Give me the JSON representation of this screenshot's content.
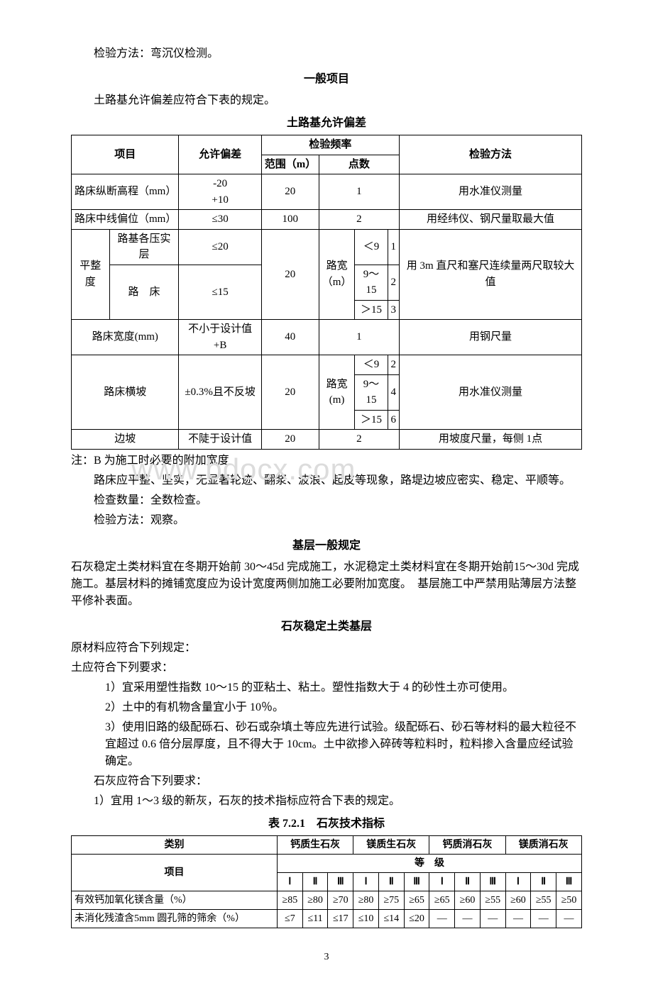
{
  "intro": {
    "method": "检验方法：弯沉仪检测。",
    "section1": "一般项目",
    "line1": "土路基允许偏差应符合下表的规定。",
    "table1_title": "土路基允许偏差"
  },
  "table1": {
    "header": {
      "c_item": "项目",
      "c_tolerance": "允许偏差",
      "c_freq": "检验频率",
      "c_range": "范围（m）",
      "c_points": "点数",
      "c_method": "检验方法"
    },
    "r1": {
      "item": "路床纵断高程（mm）",
      "tol": "-20\n+10",
      "range": "20",
      "points": "1",
      "method": "用水准仪测量"
    },
    "r2": {
      "item": "路床中线偏位（mm）",
      "tol": "≤30",
      "range": "100",
      "points": "2",
      "method": "用经纬仪、钢尺量取最大值"
    },
    "r3": {
      "item_l": "平整度",
      "sub1": "路基各压实层",
      "tol1": "≤20",
      "sub2": "路　床",
      "tol2": "≤15",
      "range": "20",
      "pre": "路宽\n（m）",
      "b1a": "＜9",
      "b1b": "1",
      "b2a": "9～15",
      "b2b": "2",
      "b3a": "＞15",
      "b3b": "3",
      "method": "用 3m 直尺和塞尺连续量两尺取较大值"
    },
    "r4": {
      "item": "路床宽度(mm)",
      "tol": "不小于设计值+B",
      "range": "40",
      "points": "1",
      "method": "用钢尺量"
    },
    "r5": {
      "item": "路床横坡",
      "tol": "±0.3%且不反坡",
      "range": "20",
      "pre": "路宽\n(m)",
      "b1a": "＜9",
      "b1b": "2",
      "b2a": "9～15",
      "b2b": "4",
      "b3a": "＞15",
      "b3b": "6",
      "method": "用水准仪测量"
    },
    "r6": {
      "item": "边坡",
      "tol": "不陡于设计值",
      "range": "20",
      "points": "2",
      "method": "用坡度尺量，每侧 1点"
    }
  },
  "after_t1": {
    "note": "注：B 为施工时必要的附加宽度",
    "p1": "路床应平整、坚实，无显著轮迹、翻浆、波浪、起皮等现象，路堤边坡应密实、稳定、平顺等。",
    "p2": "检查数量：全数检查。",
    "p3": "检验方法：观察。"
  },
  "base": {
    "title": "基层一般规定",
    "p1": "石灰稳定土类材料宜在冬期开始前 30～45d 完成施工，水泥稳定土类材料宜在冬期开始前15～30d 完成施工。基层材料的摊铺宽度应为设计宽度两侧加施工必要附加宽度。　基层施工中严禁用贴薄层方法整平修补表面。",
    "subtitle": "石灰稳定土类基层",
    "p2": "原材料应符合下列规定：",
    "p3": "土应符合下列要求：",
    "li1": "1）宜采用塑性指数 10～15 的亚粘土、粘土。塑性指数大于 4 的砂性土亦可使用。",
    "li2": "2）土中的有机物含量宜小于 10％。",
    "li3": "3）使用旧路的级配砾石、砂石或杂填土等应先进行试验。级配砾石、砂石等材料的最大粒径不宜超过 0.6 倍分层厚度，且不得大于 10cm。土中欲掺入碎砖等粒料时，粒料掺入含量应经试验确定。",
    "p4": "石灰应符合下列要求：",
    "p5": "1）宜用 1～3 级的新灰，石灰的技术指标应符合下表的规定。",
    "t2_title": "表 7.2.1　石灰技术指标"
  },
  "table2": {
    "h_cat": "类别",
    "h_item": "项目",
    "cats": {
      "a": "钙质生石灰",
      "b": "镁质生石灰",
      "c": "钙质消石灰",
      "d": "镁质消石灰"
    },
    "grade_label": "等　级",
    "grades": [
      "Ⅰ",
      "Ⅱ",
      "Ⅲ",
      "Ⅰ",
      "Ⅱ",
      "Ⅲ",
      "Ⅰ",
      "Ⅱ",
      "Ⅲ",
      "Ⅰ",
      "Ⅱ",
      "Ⅲ"
    ],
    "r1": {
      "item": "有效钙加氧化镁含量（%）",
      "v": [
        "≥85",
        "≥80",
        "≥70",
        "≥80",
        "≥75",
        "≥65",
        "≥65",
        "≥60",
        "≥55",
        "≥60",
        "≥55",
        "≥50"
      ]
    },
    "r2": {
      "item": "未消化残渣含5mm 圆孔筛的筛余（%）",
      "v": [
        "≤7",
        "≤11",
        "≤17",
        "≤10",
        "≤14",
        "≤20",
        "—",
        "—",
        "—",
        "—",
        "—",
        "—"
      ]
    }
  },
  "watermark": "www.bdocx.com",
  "page": "3"
}
